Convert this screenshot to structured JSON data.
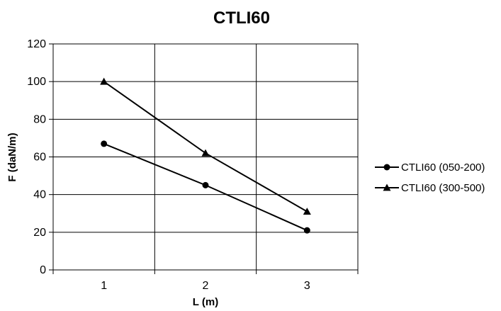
{
  "chart_data": {
    "type": "line",
    "title": "CTLI60",
    "xlabel": "L (m)",
    "ylabel": "F (daN/m)",
    "x": [
      1,
      2,
      3
    ],
    "xlim": [
      0.5,
      3.5
    ],
    "ylim": [
      0,
      120
    ],
    "yticks": [
      0,
      20,
      40,
      60,
      80,
      100,
      120
    ],
    "xticks": [
      1,
      2,
      3
    ],
    "grid": true,
    "legend_position": "right",
    "series": [
      {
        "name": "CTLI60 (050-200)",
        "marker": "circle",
        "values": [
          67,
          45,
          21
        ]
      },
      {
        "name": "CTLI60 (300-500)",
        "marker": "triangle",
        "values": [
          100,
          62,
          31
        ]
      }
    ],
    "colors": {
      "line": "#000000",
      "grid": "#000000",
      "background": "#ffffff"
    }
  }
}
